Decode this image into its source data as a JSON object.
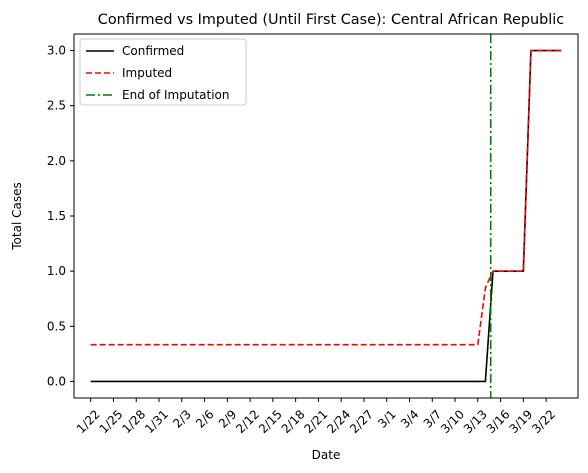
{
  "chart_data": {
    "type": "line",
    "title": "Confirmed vs Imputed (Until First Case): Central African Republic",
    "xlabel": "Date",
    "ylabel": "Total Cases",
    "x_dates": [
      "1/22",
      "1/23",
      "1/24",
      "1/25",
      "1/26",
      "1/27",
      "1/28",
      "1/29",
      "1/30",
      "1/31",
      "2/1",
      "2/2",
      "2/3",
      "2/4",
      "2/5",
      "2/6",
      "2/7",
      "2/8",
      "2/9",
      "2/10",
      "2/11",
      "2/12",
      "2/13",
      "2/14",
      "2/15",
      "2/16",
      "2/17",
      "2/18",
      "2/19",
      "2/20",
      "2/21",
      "2/22",
      "2/23",
      "2/24",
      "2/25",
      "2/26",
      "2/27",
      "2/28",
      "2/29",
      "3/1",
      "3/2",
      "3/3",
      "3/4",
      "3/5",
      "3/6",
      "3/7",
      "3/8",
      "3/9",
      "3/10",
      "3/11",
      "3/12",
      "3/13",
      "3/14",
      "3/15",
      "3/16",
      "3/17",
      "3/18",
      "3/19",
      "3/20",
      "3/21",
      "3/22",
      "3/23",
      "3/24"
    ],
    "x_ticks": [
      "1/22",
      "1/25",
      "1/28",
      "1/31",
      "2/3",
      "2/6",
      "2/9",
      "2/12",
      "2/15",
      "2/18",
      "2/21",
      "2/24",
      "2/27",
      "3/1",
      "3/4",
      "3/7",
      "3/10",
      "3/13",
      "3/16",
      "3/19",
      "3/22"
    ],
    "y_ticks": [
      "0.0",
      "0.5",
      "1.0",
      "1.5",
      "2.0",
      "2.5",
      "3.0"
    ],
    "ylim": [
      -0.15,
      3.15
    ],
    "series": [
      {
        "name": "Confirmed",
        "color": "#000000",
        "style": "solid",
        "values": [
          0,
          0,
          0,
          0,
          0,
          0,
          0,
          0,
          0,
          0,
          0,
          0,
          0,
          0,
          0,
          0,
          0,
          0,
          0,
          0,
          0,
          0,
          0,
          0,
          0,
          0,
          0,
          0,
          0,
          0,
          0,
          0,
          0,
          0,
          0,
          0,
          0,
          0,
          0,
          0,
          0,
          0,
          0,
          0,
          0,
          0,
          0,
          0,
          0,
          0,
          0,
          0,
          0,
          1,
          1,
          1,
          1,
          1,
          3,
          3,
          3,
          3,
          3
        ]
      },
      {
        "name": "Imputed",
        "color": "#ff0000",
        "style": "dashed",
        "values": [
          0.333,
          0.333,
          0.333,
          0.333,
          0.333,
          0.333,
          0.333,
          0.333,
          0.333,
          0.333,
          0.333,
          0.333,
          0.333,
          0.333,
          0.333,
          0.333,
          0.333,
          0.333,
          0.333,
          0.333,
          0.333,
          0.333,
          0.333,
          0.333,
          0.333,
          0.333,
          0.333,
          0.333,
          0.333,
          0.333,
          0.333,
          0.333,
          0.333,
          0.333,
          0.333,
          0.333,
          0.333,
          0.333,
          0.333,
          0.333,
          0.333,
          0.333,
          0.333,
          0.333,
          0.333,
          0.333,
          0.333,
          0.333,
          0.333,
          0.333,
          0.333,
          0.333,
          0.85,
          1,
          1,
          1,
          1,
          1,
          3,
          3,
          3,
          3,
          3
        ]
      }
    ],
    "vline": {
      "name": "End of Imputation",
      "x": "3/15",
      "x_index": 52.7,
      "color": "#008000",
      "style": "dashdot"
    },
    "legend": {
      "placement": "top-left",
      "entries": [
        "Confirmed",
        "Imputed",
        "End of Imputation"
      ]
    },
    "grid": false
  }
}
